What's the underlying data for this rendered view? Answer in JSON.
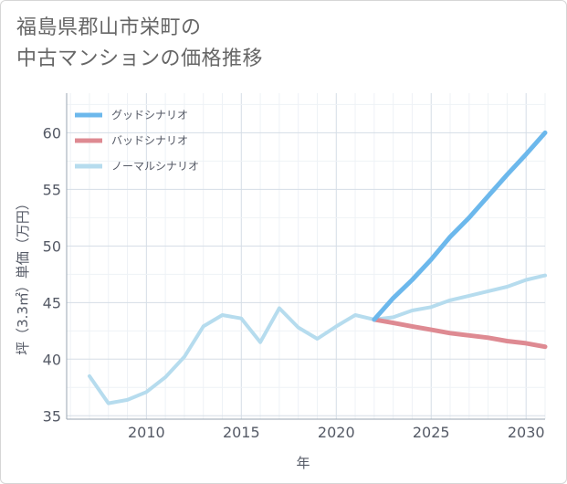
{
  "title_line1": "福島県郡山市栄町の",
  "title_line2": "中古マンションの価格推移",
  "chart_data": {
    "type": "line",
    "xlabel": "年",
    "ylabel": "坪（3.3㎡）単価（万円）",
    "xlim": [
      2005.8,
      2031
    ],
    "ylim": [
      34.7,
      63.5
    ],
    "x_ticks": [
      2010,
      2015,
      2020,
      2025,
      2030
    ],
    "y_ticks": [
      35,
      40,
      45,
      50,
      55,
      60
    ],
    "grid": true,
    "legend_position": "top-left",
    "series": [
      {
        "name": "グッドシナリオ",
        "color": "#6cb8ec",
        "x": [
          2022,
          2023,
          2024,
          2025,
          2026,
          2027,
          2028,
          2029,
          2030,
          2031
        ],
        "y": [
          43.5,
          45.4,
          47.0,
          48.8,
          50.8,
          52.5,
          54.4,
          56.3,
          58.1,
          60.0
        ]
      },
      {
        "name": "バッドシナリオ",
        "color": "#de8a92",
        "x": [
          2022,
          2023,
          2024,
          2025,
          2026,
          2027,
          2028,
          2029,
          2030,
          2031
        ],
        "y": [
          43.5,
          43.2,
          42.9,
          42.6,
          42.3,
          42.1,
          41.9,
          41.6,
          41.4,
          41.1
        ]
      },
      {
        "name": "ノーマルシナリオ",
        "color": "#b6dcee",
        "x": [
          2007,
          2008,
          2009,
          2010,
          2011,
          2012,
          2013,
          2014,
          2015,
          2016,
          2017,
          2018,
          2019,
          2020,
          2021,
          2022,
          2023,
          2024,
          2025,
          2026,
          2027,
          2028,
          2029,
          2030,
          2031
        ],
        "y": [
          38.5,
          36.1,
          36.4,
          37.1,
          38.4,
          40.2,
          42.9,
          43.9,
          43.6,
          41.5,
          44.5,
          42.8,
          41.8,
          42.9,
          43.9,
          43.5,
          43.7,
          44.3,
          44.6,
          45.2,
          45.6,
          46.0,
          46.4,
          47.0,
          47.4
        ]
      }
    ]
  }
}
